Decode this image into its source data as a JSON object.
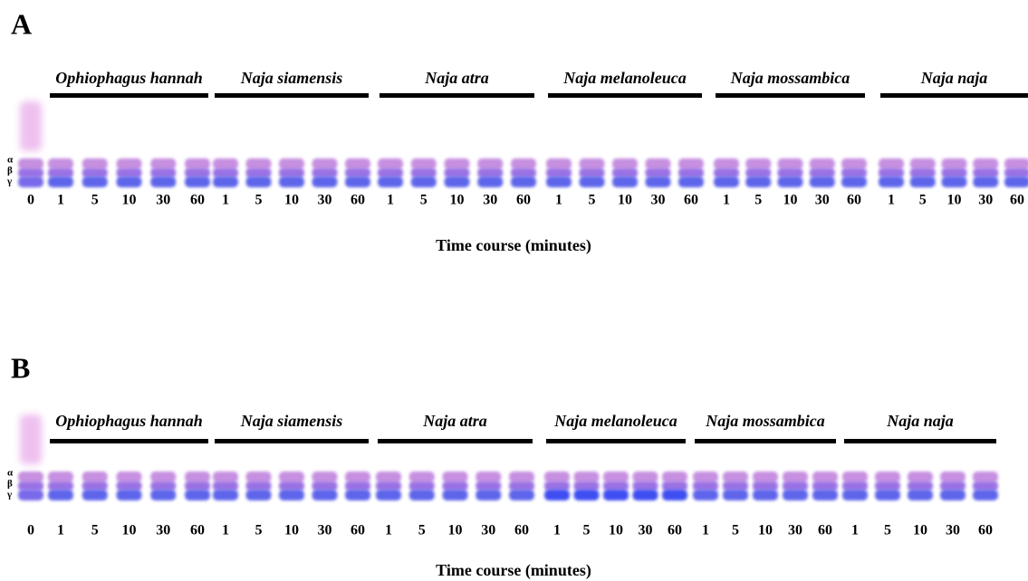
{
  "panels": [
    {
      "label": "A",
      "band_labels": [
        "α",
        "β",
        "γ"
      ],
      "control_lane": "0",
      "groups": [
        {
          "name": "Ophiophagus hannah",
          "lanes": [
            "1",
            "5",
            "10",
            "30",
            "60"
          ]
        },
        {
          "name": "Naja siamensis",
          "lanes": [
            "1",
            "5",
            "10",
            "30",
            "60"
          ]
        },
        {
          "name": "Naja atra",
          "lanes": [
            "1",
            "5",
            "10",
            "30",
            "60"
          ]
        },
        {
          "name": "Naja melanoleuca",
          "lanes": [
            "1",
            "5",
            "10",
            "30",
            "60"
          ]
        },
        {
          "name": "Naja mossambica",
          "lanes": [
            "1",
            "5",
            "10",
            "30",
            "60"
          ]
        },
        {
          "name": "Naja naja",
          "lanes": [
            "1",
            "5",
            "10",
            "30",
            "60"
          ]
        }
      ],
      "axis_label": "Time course (minutes)"
    },
    {
      "label": "B",
      "band_labels": [
        "α",
        "β",
        "γ"
      ],
      "control_lane": "0",
      "groups": [
        {
          "name": "Ophiophagus hannah",
          "lanes": [
            "1",
            "5",
            "10",
            "30",
            "60"
          ]
        },
        {
          "name": "Naja siamensis",
          "lanes": [
            "1",
            "5",
            "10",
            "30",
            "60"
          ]
        },
        {
          "name": "Naja atra",
          "lanes": [
            "1",
            "5",
            "10",
            "30",
            "60"
          ]
        },
        {
          "name": "Naja melanoleuca",
          "lanes": [
            "1",
            "5",
            "10",
            "30",
            "60"
          ]
        },
        {
          "name": "Naja mossambica",
          "lanes": [
            "1",
            "5",
            "10",
            "30",
            "60"
          ]
        },
        {
          "name": "Naja naja",
          "lanes": [
            "1",
            "5",
            "10",
            "30",
            "60"
          ]
        }
      ],
      "axis_label": "Time course (minutes)"
    }
  ]
}
